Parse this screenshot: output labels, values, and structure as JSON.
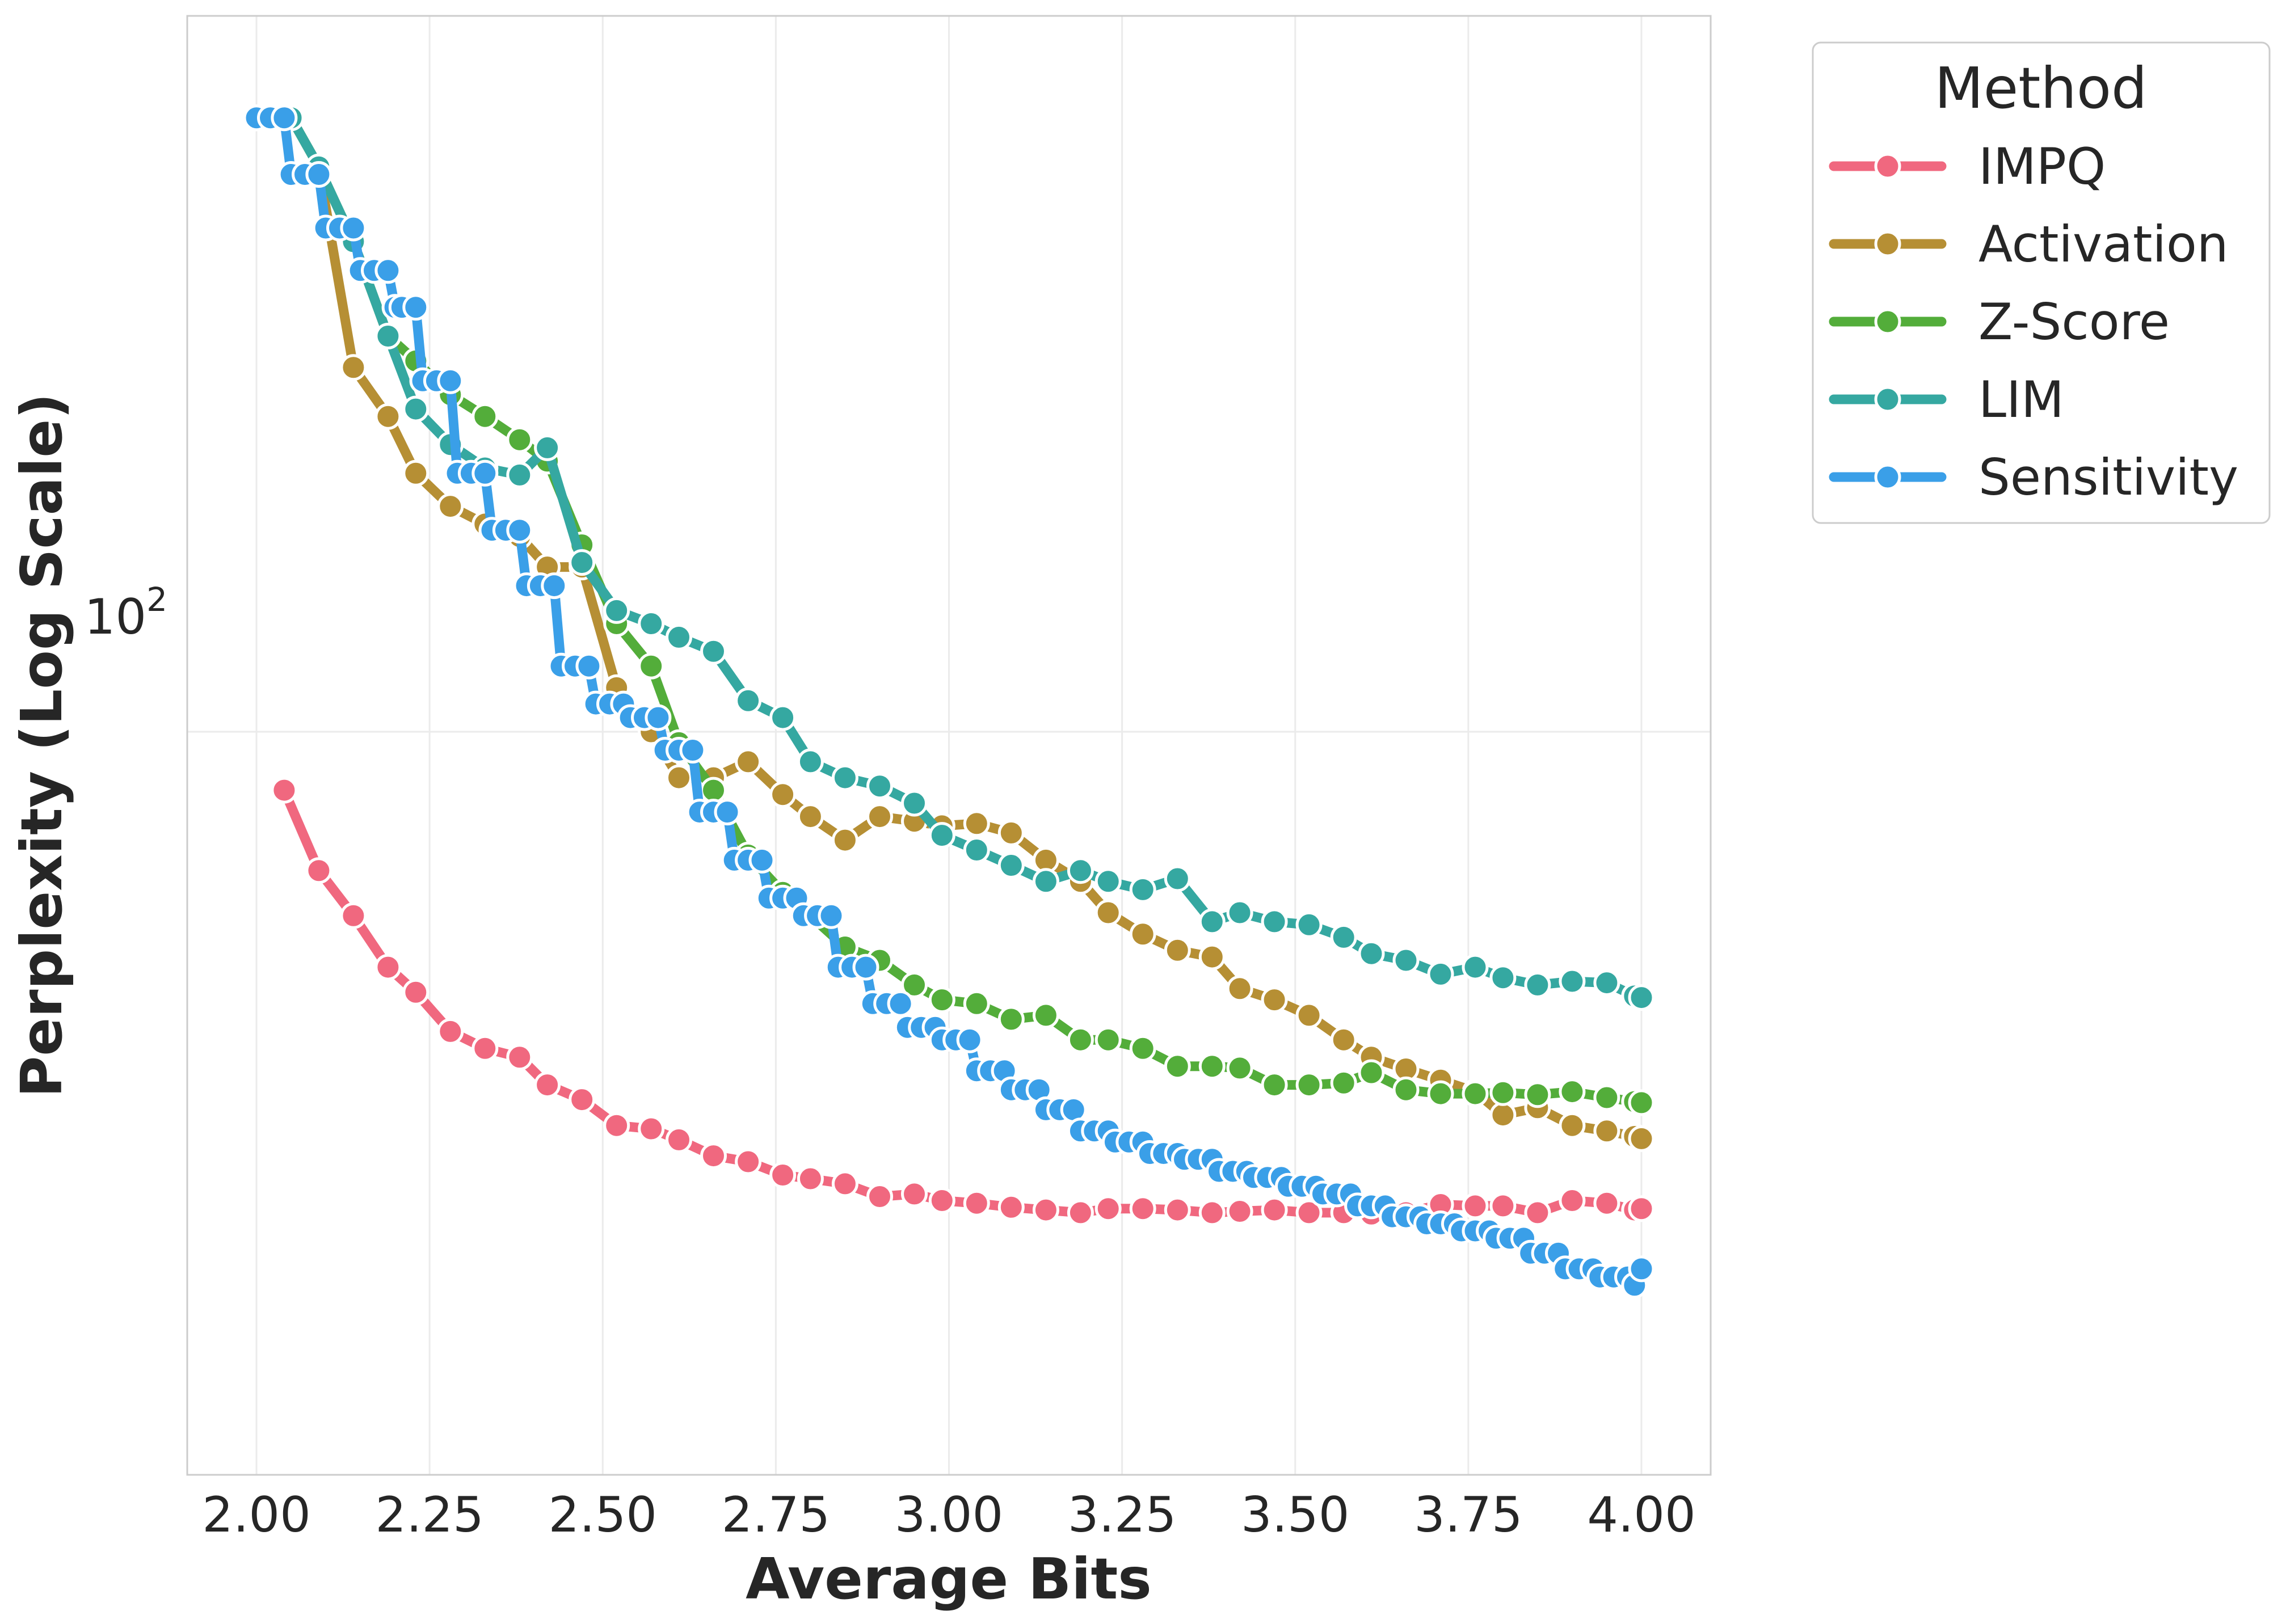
{
  "chart_data": {
    "type": "line",
    "title": "",
    "xlabel": "Average Bits",
    "ylabel": "Perplexity (Log Scale)",
    "y_scale": "log",
    "xlim": [
      1.9,
      4.1
    ],
    "ylim": [
      12.7,
      730
    ],
    "grid": true,
    "x_ticks": [
      2.0,
      2.25,
      2.5,
      2.75,
      3.0,
      3.25,
      3.5,
      3.75,
      4.0
    ],
    "x_tick_labels": [
      "2.00",
      "2.25",
      "2.50",
      "2.75",
      "3.00",
      "3.25",
      "3.50",
      "3.75",
      "4.00"
    ],
    "y_major_tick": 100,
    "y_tick_base": "10",
    "y_tick_exponent": "2",
    "legend": {
      "title": "Method",
      "position": "outside-right-top"
    },
    "series": [
      {
        "name": "IMPQ",
        "color": "#f0687f",
        "points": [
          [
            2.04,
            85
          ],
          [
            2.09,
            68
          ],
          [
            2.14,
            60
          ],
          [
            2.19,
            52
          ],
          [
            2.23,
            48.5
          ],
          [
            2.28,
            43.5
          ],
          [
            2.33,
            41.5
          ],
          [
            2.38,
            40.5
          ],
          [
            2.42,
            37.5
          ],
          [
            2.47,
            36
          ],
          [
            2.52,
            33.5
          ],
          [
            2.57,
            33.2
          ],
          [
            2.61,
            32.2
          ],
          [
            2.66,
            30.8
          ],
          [
            2.71,
            30.3
          ],
          [
            2.76,
            29.2
          ],
          [
            2.8,
            28.9
          ],
          [
            2.85,
            28.5
          ],
          [
            2.9,
            27.5
          ],
          [
            2.95,
            27.7
          ],
          [
            2.99,
            27.2
          ],
          [
            3.04,
            27
          ],
          [
            3.09,
            26.7
          ],
          [
            3.14,
            26.5
          ],
          [
            3.19,
            26.3
          ],
          [
            3.23,
            26.6
          ],
          [
            3.28,
            26.6
          ],
          [
            3.33,
            26.5
          ],
          [
            3.38,
            26.3
          ],
          [
            3.42,
            26.4
          ],
          [
            3.47,
            26.5
          ],
          [
            3.52,
            26.3
          ],
          [
            3.57,
            26.3
          ],
          [
            3.61,
            26.2
          ],
          [
            3.66,
            26.3
          ],
          [
            3.71,
            26.9
          ],
          [
            3.76,
            26.8
          ],
          [
            3.8,
            26.8
          ],
          [
            3.85,
            26.3
          ],
          [
            3.9,
            27.2
          ],
          [
            3.95,
            27
          ],
          [
            3.99,
            26.5
          ],
          [
            4.0,
            26.6
          ]
        ]
      },
      {
        "name": "Activation",
        "color": "#b68f34",
        "points": [
          [
            2.0,
            550
          ],
          [
            2.05,
            550
          ],
          [
            2.09,
            480
          ],
          [
            2.14,
            275
          ],
          [
            2.19,
            240
          ],
          [
            2.23,
            205
          ],
          [
            2.28,
            187
          ],
          [
            2.33,
            178
          ],
          [
            2.38,
            172
          ],
          [
            2.42,
            158
          ],
          [
            2.47,
            158
          ],
          [
            2.52,
            113
          ],
          [
            2.57,
            100
          ],
          [
            2.61,
            88
          ],
          [
            2.66,
            88
          ],
          [
            2.71,
            92
          ],
          [
            2.76,
            84
          ],
          [
            2.8,
            79
          ],
          [
            2.85,
            74
          ],
          [
            2.9,
            79
          ],
          [
            2.95,
            78
          ],
          [
            2.99,
            77
          ],
          [
            3.04,
            77.5
          ],
          [
            3.09,
            75.5
          ],
          [
            3.14,
            70
          ],
          [
            3.19,
            66
          ],
          [
            3.23,
            60.5
          ],
          [
            3.28,
            57
          ],
          [
            3.33,
            54.5
          ],
          [
            3.38,
            53.5
          ],
          [
            3.42,
            49
          ],
          [
            3.47,
            47.5
          ],
          [
            3.52,
            45.5
          ],
          [
            3.57,
            42.5
          ],
          [
            3.61,
            40.5
          ],
          [
            3.66,
            39.2
          ],
          [
            3.71,
            38
          ],
          [
            3.76,
            36.8
          ],
          [
            3.8,
            34.5
          ],
          [
            3.85,
            35.2
          ],
          [
            3.9,
            33.5
          ],
          [
            3.95,
            33
          ],
          [
            3.99,
            32.5
          ],
          [
            4.0,
            32.3
          ]
        ]
      },
      {
        "name": "Z-Score",
        "color": "#53ad3a",
        "points": [
          [
            2.0,
            550
          ],
          [
            2.05,
            550
          ],
          [
            2.09,
            480
          ],
          [
            2.14,
            390
          ],
          [
            2.19,
            300
          ],
          [
            2.23,
            280
          ],
          [
            2.28,
            255
          ],
          [
            2.33,
            240
          ],
          [
            2.38,
            225
          ],
          [
            2.42,
            212
          ],
          [
            2.47,
            168
          ],
          [
            2.52,
            135
          ],
          [
            2.57,
            120
          ],
          [
            2.61,
            97
          ],
          [
            2.66,
            85
          ],
          [
            2.71,
            71
          ],
          [
            2.76,
            64
          ],
          [
            2.8,
            60
          ],
          [
            2.85,
            55
          ],
          [
            2.9,
            53
          ],
          [
            2.95,
            49.5
          ],
          [
            2.99,
            47.5
          ],
          [
            3.04,
            47
          ],
          [
            3.09,
            45
          ],
          [
            3.14,
            45.5
          ],
          [
            3.19,
            42.5
          ],
          [
            3.23,
            42.5
          ],
          [
            3.28,
            41.5
          ],
          [
            3.33,
            39.5
          ],
          [
            3.38,
            39.5
          ],
          [
            3.42,
            39.3
          ],
          [
            3.47,
            37.5
          ],
          [
            3.52,
            37.5
          ],
          [
            3.57,
            37.7
          ],
          [
            3.61,
            38.8
          ],
          [
            3.66,
            37
          ],
          [
            3.71,
            36.6
          ],
          [
            3.76,
            36.6
          ],
          [
            3.8,
            36.7
          ],
          [
            3.85,
            36.5
          ],
          [
            3.9,
            36.8
          ],
          [
            3.95,
            36.2
          ],
          [
            3.99,
            35.8
          ],
          [
            4.0,
            35.7
          ]
        ]
      },
      {
        "name": "LIM",
        "color": "#35a8a1",
        "points": [
          [
            2.0,
            550
          ],
          [
            2.05,
            550
          ],
          [
            2.09,
            480
          ],
          [
            2.14,
            390
          ],
          [
            2.19,
            300
          ],
          [
            2.23,
            245
          ],
          [
            2.28,
            222
          ],
          [
            2.33,
            208
          ],
          [
            2.38,
            204
          ],
          [
            2.42,
            220
          ],
          [
            2.47,
            160
          ],
          [
            2.52,
            140
          ],
          [
            2.57,
            135
          ],
          [
            2.61,
            130
          ],
          [
            2.66,
            125
          ],
          [
            2.71,
            109
          ],
          [
            2.76,
            104
          ],
          [
            2.8,
            92
          ],
          [
            2.85,
            88
          ],
          [
            2.9,
            86
          ],
          [
            2.95,
            82
          ],
          [
            2.99,
            75
          ],
          [
            3.04,
            72
          ],
          [
            3.09,
            69
          ],
          [
            3.14,
            66
          ],
          [
            3.19,
            68
          ],
          [
            3.23,
            66
          ],
          [
            3.28,
            64.5
          ],
          [
            3.33,
            66.5
          ],
          [
            3.38,
            59
          ],
          [
            3.42,
            60.5
          ],
          [
            3.47,
            59
          ],
          [
            3.52,
            58.5
          ],
          [
            3.57,
            56.5
          ],
          [
            3.61,
            54
          ],
          [
            3.66,
            53
          ],
          [
            3.71,
            51
          ],
          [
            3.76,
            52
          ],
          [
            3.8,
            50.5
          ],
          [
            3.85,
            49.5
          ],
          [
            3.9,
            50
          ],
          [
            3.95,
            49.8
          ],
          [
            3.99,
            48
          ],
          [
            4.0,
            47.8
          ]
        ]
      },
      {
        "name": "Sensitivity",
        "color": "#3a9fe8",
        "points": [
          [
            2.0,
            550
          ],
          [
            2.02,
            550
          ],
          [
            2.04,
            550
          ],
          [
            2.05,
            470
          ],
          [
            2.07,
            470
          ],
          [
            2.09,
            470
          ],
          [
            2.1,
            405
          ],
          [
            2.12,
            405
          ],
          [
            2.14,
            405
          ],
          [
            2.15,
            360
          ],
          [
            2.17,
            360
          ],
          [
            2.19,
            360
          ],
          [
            2.2,
            325
          ],
          [
            2.21,
            325
          ],
          [
            2.23,
            325
          ],
          [
            2.24,
            265
          ],
          [
            2.26,
            265
          ],
          [
            2.28,
            265
          ],
          [
            2.29,
            205
          ],
          [
            2.31,
            205
          ],
          [
            2.33,
            205
          ],
          [
            2.34,
            175
          ],
          [
            2.36,
            175
          ],
          [
            2.38,
            175
          ],
          [
            2.39,
            150
          ],
          [
            2.41,
            150
          ],
          [
            2.43,
            150
          ],
          [
            2.44,
            120
          ],
          [
            2.46,
            120
          ],
          [
            2.48,
            120
          ],
          [
            2.49,
            108
          ],
          [
            2.51,
            108
          ],
          [
            2.53,
            108
          ],
          [
            2.54,
            104
          ],
          [
            2.56,
            104
          ],
          [
            2.58,
            104
          ],
          [
            2.59,
            95
          ],
          [
            2.61,
            95
          ],
          [
            2.63,
            95
          ],
          [
            2.64,
            80
          ],
          [
            2.66,
            80
          ],
          [
            2.68,
            80
          ],
          [
            2.69,
            70
          ],
          [
            2.71,
            70
          ],
          [
            2.73,
            70
          ],
          [
            2.74,
            63
          ],
          [
            2.76,
            63
          ],
          [
            2.78,
            63
          ],
          [
            2.79,
            60
          ],
          [
            2.81,
            60
          ],
          [
            2.83,
            60
          ],
          [
            2.84,
            52
          ],
          [
            2.86,
            52
          ],
          [
            2.88,
            52
          ],
          [
            2.89,
            47
          ],
          [
            2.91,
            47
          ],
          [
            2.93,
            47
          ],
          [
            2.94,
            44
          ],
          [
            2.96,
            44
          ],
          [
            2.98,
            44
          ],
          [
            2.99,
            42.5
          ],
          [
            3.01,
            42.5
          ],
          [
            3.03,
            42.5
          ],
          [
            3.04,
            39
          ],
          [
            3.06,
            39
          ],
          [
            3.08,
            39
          ],
          [
            3.09,
            37
          ],
          [
            3.11,
            37
          ],
          [
            3.13,
            37
          ],
          [
            3.14,
            35
          ],
          [
            3.16,
            35
          ],
          [
            3.18,
            35
          ],
          [
            3.19,
            33
          ],
          [
            3.21,
            33
          ],
          [
            3.23,
            33
          ],
          [
            3.24,
            32
          ],
          [
            3.26,
            32
          ],
          [
            3.28,
            32
          ],
          [
            3.29,
            31
          ],
          [
            3.31,
            31
          ],
          [
            3.33,
            31
          ],
          [
            3.34,
            30.5
          ],
          [
            3.36,
            30.5
          ],
          [
            3.38,
            30.5
          ],
          [
            3.39,
            29.5
          ],
          [
            3.41,
            29.5
          ],
          [
            3.43,
            29.5
          ],
          [
            3.44,
            29
          ],
          [
            3.46,
            29
          ],
          [
            3.48,
            29
          ],
          [
            3.49,
            28.3
          ],
          [
            3.51,
            28.3
          ],
          [
            3.53,
            28.3
          ],
          [
            3.54,
            27.7
          ],
          [
            3.56,
            27.7
          ],
          [
            3.58,
            27.7
          ],
          [
            3.59,
            26.8
          ],
          [
            3.61,
            26.8
          ],
          [
            3.63,
            26.8
          ],
          [
            3.64,
            26
          ],
          [
            3.66,
            26
          ],
          [
            3.68,
            26
          ],
          [
            3.69,
            25.5
          ],
          [
            3.71,
            25.5
          ],
          [
            3.73,
            25.5
          ],
          [
            3.74,
            25
          ],
          [
            3.76,
            25
          ],
          [
            3.78,
            25
          ],
          [
            3.79,
            24.5
          ],
          [
            3.81,
            24.5
          ],
          [
            3.83,
            24.5
          ],
          [
            3.84,
            23.5
          ],
          [
            3.86,
            23.5
          ],
          [
            3.88,
            23.5
          ],
          [
            3.89,
            22.5
          ],
          [
            3.91,
            22.5
          ],
          [
            3.93,
            22.5
          ],
          [
            3.94,
            22
          ],
          [
            3.96,
            22
          ],
          [
            3.98,
            22
          ],
          [
            3.99,
            21.5
          ],
          [
            4.0,
            22.5
          ]
        ]
      }
    ]
  }
}
